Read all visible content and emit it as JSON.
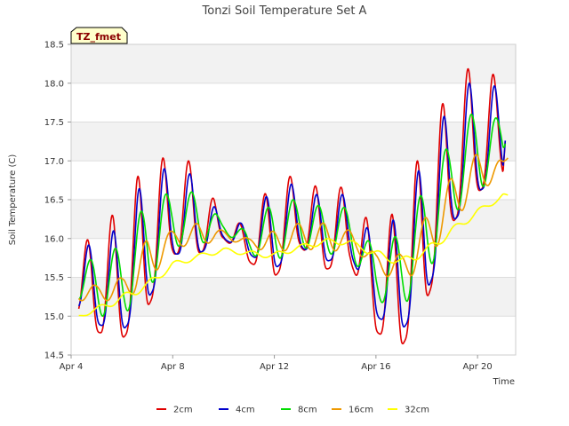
{
  "chart_data": {
    "type": "line",
    "title": "Tonzi Soil Temperature Set A",
    "xlabel": "Time",
    "ylabel": "Soil Temperature (C)",
    "tag": "TZ_fmet",
    "x_domain": [
      "Apr 4",
      "Apr 21.2"
    ],
    "ylim": [
      14.5,
      18.5
    ],
    "yticks": [
      "14.5",
      "15.0",
      "15.5",
      "16.0",
      "16.5",
      "17.0",
      "17.5",
      "18.0",
      "18.5"
    ],
    "xticks": [
      {
        "day": 4,
        "label": "Apr 4"
      },
      {
        "day": 8,
        "label": "Apr 8"
      },
      {
        "day": 12,
        "label": "Apr 12"
      },
      {
        "day": 16,
        "label": "Apr 16"
      },
      {
        "day": 20,
        "label": "Apr 20"
      }
    ],
    "grid": true,
    "legend_position": "bottom",
    "series": [
      {
        "name": "2cm",
        "color": "#e00000",
        "wave": "sharp",
        "phase": 0.0,
        "keys": [
          [
            4.3,
            15.7,
            15.0
          ],
          [
            5.0,
            16.3,
            14.8
          ],
          [
            6.0,
            16.3,
            14.7
          ],
          [
            7.0,
            17.1,
            15.1
          ],
          [
            8.0,
            17.0,
            15.8
          ],
          [
            9.0,
            17.0,
            15.8
          ],
          [
            10.0,
            16.2,
            16.0
          ],
          [
            11.0,
            16.2,
            15.7
          ],
          [
            12.0,
            16.8,
            15.5
          ],
          [
            13.0,
            16.8,
            15.9
          ],
          [
            14.0,
            16.6,
            15.6
          ],
          [
            15.0,
            16.7,
            15.7
          ],
          [
            16.0,
            16.0,
            14.8
          ],
          [
            17.0,
            16.5,
            14.6
          ],
          [
            18.0,
            17.3,
            15.2
          ],
          [
            19.0,
            18.0,
            16.2
          ],
          [
            20.0,
            18.3,
            16.6
          ],
          [
            21.0,
            18.0,
            16.8
          ],
          [
            21.1,
            17.6,
            17.3
          ]
        ]
      },
      {
        "name": "4cm",
        "color": "#0000cc",
        "wave": "sharp",
        "phase": 0.05,
        "keys": [
          [
            4.3,
            15.7,
            15.1
          ],
          [
            5.0,
            16.1,
            14.9
          ],
          [
            6.0,
            16.1,
            14.8
          ],
          [
            7.0,
            16.9,
            15.2
          ],
          [
            8.0,
            16.9,
            15.8
          ],
          [
            9.0,
            16.8,
            15.8
          ],
          [
            10.0,
            16.2,
            16.0
          ],
          [
            11.0,
            16.2,
            15.8
          ],
          [
            12.0,
            16.7,
            15.6
          ],
          [
            13.0,
            16.7,
            15.9
          ],
          [
            14.0,
            16.5,
            15.7
          ],
          [
            15.0,
            16.6,
            15.8
          ],
          [
            16.0,
            15.9,
            15.0
          ],
          [
            17.0,
            16.4,
            14.8
          ],
          [
            18.0,
            17.1,
            15.3
          ],
          [
            19.0,
            17.8,
            16.2
          ],
          [
            20.0,
            18.1,
            16.6
          ],
          [
            21.0,
            17.9,
            16.8
          ],
          [
            21.1,
            17.5,
            17.3
          ]
        ]
      },
      {
        "name": "8cm",
        "color": "#00dd00",
        "wave": "smooth",
        "phase": 0.12,
        "keys": [
          [
            4.3,
            15.6,
            15.2
          ],
          [
            5.0,
            15.8,
            15.0
          ],
          [
            6.0,
            15.9,
            15.0
          ],
          [
            7.0,
            16.5,
            15.3
          ],
          [
            8.0,
            16.6,
            15.9
          ],
          [
            9.0,
            16.6,
            15.9
          ],
          [
            10.0,
            16.2,
            16.1
          ],
          [
            11.0,
            16.1,
            15.8
          ],
          [
            12.0,
            16.5,
            15.7
          ],
          [
            13.0,
            16.5,
            15.9
          ],
          [
            14.0,
            16.4,
            15.8
          ],
          [
            15.0,
            16.4,
            15.8
          ],
          [
            16.0,
            15.8,
            15.2
          ],
          [
            17.0,
            16.1,
            15.1
          ],
          [
            18.0,
            16.7,
            15.5
          ],
          [
            19.0,
            17.3,
            16.3
          ],
          [
            20.0,
            17.7,
            16.6
          ],
          [
            21.0,
            17.5,
            16.9
          ],
          [
            21.1,
            17.4,
            17.2
          ]
        ]
      },
      {
        "name": "16cm",
        "color": "#ee9900",
        "wave": "smooth",
        "phase": 0.3,
        "keys": [
          [
            4.3,
            15.4,
            15.2
          ],
          [
            5.0,
            15.4,
            15.2
          ],
          [
            6.0,
            15.5,
            15.2
          ],
          [
            7.0,
            16.0,
            15.4
          ],
          [
            8.0,
            16.1,
            15.9
          ],
          [
            9.0,
            16.2,
            15.9
          ],
          [
            10.0,
            16.1,
            16.0
          ],
          [
            11.0,
            16.0,
            15.9
          ],
          [
            12.0,
            16.1,
            15.8
          ],
          [
            13.0,
            16.2,
            15.9
          ],
          [
            14.0,
            16.2,
            15.8
          ],
          [
            15.0,
            16.1,
            15.9
          ],
          [
            16.0,
            15.8,
            15.6
          ],
          [
            17.0,
            15.8,
            15.4
          ],
          [
            18.0,
            16.3,
            15.7
          ],
          [
            19.0,
            16.8,
            16.2
          ],
          [
            20.0,
            17.1,
            16.6
          ],
          [
            21.0,
            17.0,
            16.8
          ],
          [
            21.2,
            17.1,
            17.0
          ]
        ]
      },
      {
        "name": "32cm",
        "color": "#ffff00",
        "wave": "smooth",
        "phase": 0.5,
        "keys": [
          [
            4.3,
            15.02,
            14.98
          ],
          [
            5.0,
            15.12,
            15.05
          ],
          [
            6.0,
            15.28,
            15.18
          ],
          [
            7.0,
            15.45,
            15.35
          ],
          [
            8.0,
            15.7,
            15.62
          ],
          [
            9.0,
            15.8,
            15.74
          ],
          [
            10.0,
            15.88,
            15.82
          ],
          [
            11.0,
            15.84,
            15.78
          ],
          [
            12.0,
            15.82,
            15.74
          ],
          [
            13.0,
            15.92,
            15.86
          ],
          [
            14.0,
            16.0,
            15.92
          ],
          [
            15.0,
            15.98,
            15.92
          ],
          [
            16.0,
            15.85,
            15.75
          ],
          [
            17.0,
            15.75,
            15.65
          ],
          [
            18.0,
            15.9,
            15.78
          ],
          [
            19.0,
            16.15,
            16.05
          ],
          [
            20.0,
            16.38,
            16.3
          ],
          [
            21.0,
            16.58,
            16.52
          ],
          [
            21.2,
            16.56,
            16.54
          ]
        ]
      }
    ]
  }
}
